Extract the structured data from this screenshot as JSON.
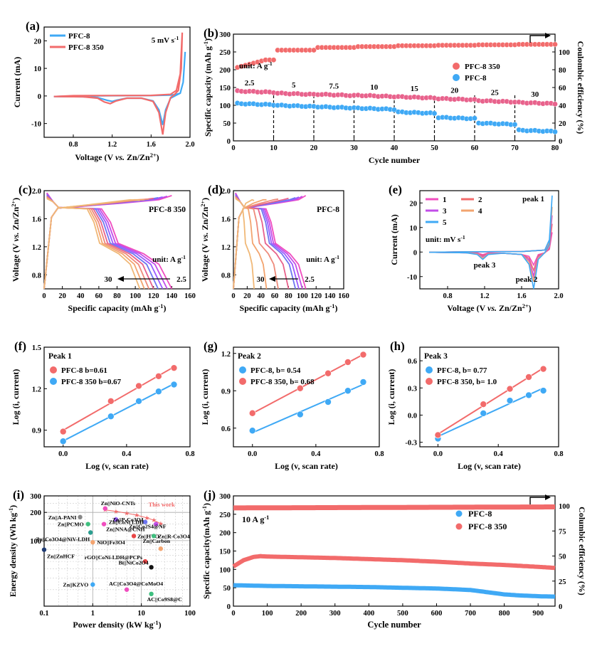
{
  "colors": {
    "blue": "#3fa9f5",
    "red": "#f26b6b",
    "rate_rainbow": [
      "#f04dbf",
      "#c24de8",
      "#9a5bff",
      "#6d76f0",
      "#e8628c",
      "#ee8a7a",
      "#f3a46f",
      "#f0b877"
    ]
  },
  "chart_data": [
    {
      "id": "a",
      "type": "line",
      "panel_label": "(a)",
      "xlabel": "Voltage (V vs. Zn/Zn2+)",
      "ylabel": "Current (mA)",
      "xlim": [
        0.5,
        2.0
      ],
      "ylim": [
        -15,
        25
      ],
      "xticks": [
        "0.8",
        "1.2",
        "1.6",
        "2.0"
      ],
      "xtick_values": [
        0.8,
        1.2,
        1.6,
        2.0
      ],
      "yticks": [
        "-10",
        "0",
        "10",
        "20"
      ],
      "ytick_values": [
        -10,
        0,
        10,
        20
      ],
      "annotation": "5 mV s-1",
      "series": [
        {
          "name": "PFC-8",
          "color": "#3fa9f5",
          "x": [
            0.6,
            0.9,
            1.05,
            1.15,
            1.2,
            1.25,
            1.35,
            1.5,
            1.62,
            1.68,
            1.72,
            1.75,
            1.8,
            1.86,
            1.9,
            1.93,
            1.95,
            1.93,
            1.9,
            1.85,
            1.8,
            1.6,
            1.2,
            0.8,
            0.6
          ],
          "y": [
            -0.2,
            -0.3,
            -0.6,
            -1.6,
            -2.0,
            -1.5,
            -0.8,
            -0.8,
            -1.8,
            -5,
            -10.5,
            -5,
            -0.8,
            0.3,
            1,
            5,
            16,
            5,
            1,
            0.5,
            0.3,
            0.15,
            0.1,
            0,
            -0.2
          ]
        },
        {
          "name": "PFC-8 350",
          "color": "#f26b6b",
          "x": [
            0.6,
            0.9,
            1.05,
            1.12,
            1.18,
            1.24,
            1.35,
            1.5,
            1.62,
            1.68,
            1.72,
            1.75,
            1.8,
            1.84,
            1.88,
            1.91,
            1.92,
            1.9,
            1.86,
            1.8,
            1.6,
            1.2,
            0.8,
            0.6
          ],
          "y": [
            -0.2,
            -0.3,
            -0.8,
            -2.2,
            -2.8,
            -1.8,
            -0.8,
            -0.8,
            -2,
            -6,
            -14,
            -6,
            -0.6,
            0.5,
            2,
            10,
            23,
            8,
            2,
            0.6,
            0.2,
            0.15,
            0.1,
            -0.2
          ]
        }
      ]
    },
    {
      "id": "b",
      "type": "scatter",
      "panel_label": "(b)",
      "xlabel": "Cycle number",
      "ylabel": "Specific capacity (mAh g-1)",
      "y2label": "Coulombic efficiency (%)",
      "xlim": [
        0,
        80
      ],
      "ylim": [
        0,
        300
      ],
      "y2lim": [
        0,
        120
      ],
      "xticks": [
        "0",
        "10",
        "20",
        "30",
        "40",
        "50",
        "60",
        "70",
        "80"
      ],
      "xtick_values": [
        0,
        10,
        20,
        30,
        40,
        50,
        60,
        70,
        80
      ],
      "yticks": [
        "0",
        "50",
        "100",
        "150",
        "200",
        "250",
        "300"
      ],
      "ytick_values": [
        0,
        50,
        100,
        150,
        200,
        250,
        300
      ],
      "y2ticks": [
        "0",
        "20",
        "40",
        "60",
        "80",
        "100"
      ],
      "y2tick_values": [
        0,
        20,
        40,
        60,
        80,
        100
      ],
      "unit_note": "unit: A g-1",
      "rates": [
        "2.5",
        "5",
        "7.5",
        "10",
        "15",
        "20",
        "25",
        "30"
      ],
      "rate_label_x": [
        4,
        15,
        25,
        35,
        45,
        55,
        65,
        75
      ],
      "dividers": [
        10,
        20,
        30,
        40,
        50,
        60,
        70
      ],
      "capacity_pfc8_350": [
        140,
        134,
        131,
        128,
        124,
        119,
        113,
        108
      ],
      "capacity_pfc8": [
        105,
        100,
        96,
        92,
        81,
        66,
        50,
        30
      ],
      "ce_pfc8_350": [
        91,
        102,
        105,
        106,
        107,
        107.5,
        108,
        108.5
      ],
      "legend": [
        "PFC-8 350",
        "PFC-8"
      ]
    },
    {
      "id": "c",
      "type": "line",
      "panel_label": "(c)",
      "xlabel": "Specific capacity (mAh g-1)",
      "ylabel": "Voltage (V vs. Zn/Zn2+)",
      "xlim": [
        0,
        160
      ],
      "ylim": [
        0.6,
        2.0
      ],
      "xticks": [
        "0",
        "20",
        "40",
        "60",
        "80",
        "100",
        "120",
        "140",
        "160"
      ],
      "xtick_values": [
        0,
        20,
        40,
        60,
        80,
        100,
        120,
        140,
        160
      ],
      "yticks": [
        "0.8",
        "1.2",
        "1.6",
        "2.0"
      ],
      "ytick_values": [
        0.8,
        1.2,
        1.6,
        2.0
      ],
      "title": "PFC-8 350",
      "unit_note": "unit: A g-1",
      "arrow_from": "30",
      "arrow_to": "2.5",
      "discharge_capacities": [
        140,
        135,
        130,
        125,
        120,
        115,
        110,
        105
      ]
    },
    {
      "id": "d",
      "type": "line",
      "panel_label": "(d)",
      "xlabel": "Specific capacity (mAh g-1)",
      "ylabel": "Voltage (V vs. Zn/Zn2+)",
      "xlim": [
        0,
        160
      ],
      "ylim": [
        0.6,
        2.0
      ],
      "xticks": [
        "0",
        "20",
        "40",
        "60",
        "80",
        "100",
        "120",
        "140",
        "160"
      ],
      "xtick_values": [
        0,
        20,
        40,
        60,
        80,
        100,
        120,
        140,
        160
      ],
      "yticks": [
        "0.8",
        "1.2",
        "1.6",
        "2.0"
      ],
      "ytick_values": [
        0.8,
        1.2,
        1.6,
        2.0
      ],
      "title": "PFC-8",
      "unit_note": "unit: A g-1",
      "arrow_from": "30",
      "arrow_to": "2.5",
      "discharge_capacities": [
        105,
        100,
        95,
        90,
        80,
        65,
        48,
        30
      ]
    },
    {
      "id": "e",
      "type": "line",
      "panel_label": "(e)",
      "xlabel": "Voltage (V vs. Zn/Zn2+)",
      "ylabel": "Current (mA)",
      "xlim": [
        0.5,
        2.0
      ],
      "ylim": [
        -15,
        25
      ],
      "xticks": [
        "0.8",
        "1.2",
        "1.6",
        "2.0"
      ],
      "xtick_values": [
        0.8,
        1.2,
        1.6,
        2.0
      ],
      "yticks": [
        "-10",
        "0",
        "10",
        "20"
      ],
      "ytick_values": [
        -10,
        0,
        10,
        20
      ],
      "legend": [
        "1",
        "2",
        "3",
        "4",
        "5"
      ],
      "legend_colors": [
        "#f04dbf",
        "#f26b6b",
        "#c24de8",
        "#f3a46f",
        "#3fa9f5"
      ],
      "unit_note": "unit: mV s-1",
      "peak_labels": [
        "peak 1",
        "peak 2",
        "peak 3"
      ],
      "peak_scale": [
        0.35,
        0.5,
        0.65,
        0.8,
        1.0
      ]
    },
    {
      "id": "f",
      "type": "scatter",
      "panel_label": "(f)",
      "xlabel": "Log (v, scan rate)",
      "ylabel": "Log (i, current)",
      "xlim": [
        -0.12,
        0.8
      ],
      "ylim": [
        0.78,
        1.5
      ],
      "xticks": [
        "0.0",
        "0.4",
        "0.8"
      ],
      "xtick_values": [
        0,
        0.4,
        0.8
      ],
      "yticks": [
        "0.9",
        "1.2",
        "1.5"
      ],
      "ytick_values": [
        0.9,
        1.2,
        1.5
      ],
      "title": "Peak 1",
      "x": [
        0,
        0.301,
        0.477,
        0.602,
        0.699
      ],
      "series": [
        {
          "name": "PFC-8 b=0.61",
          "color": "#f26b6b",
          "values": [
            0.89,
            1.11,
            1.22,
            1.29,
            1.35
          ]
        },
        {
          "name": "PFC-8 350 b=0.67",
          "color": "#3fa9f5",
          "values": [
            0.82,
            1.0,
            1.11,
            1.18,
            1.23
          ]
        }
      ]
    },
    {
      "id": "g",
      "type": "scatter",
      "panel_label": "(g)",
      "xlabel": "Log (v, scan rate)",
      "ylabel": "Log (i, current)",
      "xlim": [
        -0.12,
        0.8
      ],
      "ylim": [
        0.45,
        1.25
      ],
      "xticks": [
        "0.0",
        "0.4",
        "0.8"
      ],
      "xtick_values": [
        0,
        0.4,
        0.8
      ],
      "yticks": [
        "0.6",
        "0.9",
        "1.2"
      ],
      "ytick_values": [
        0.6,
        0.9,
        1.2
      ],
      "title": "Peak 2",
      "x": [
        0,
        0.301,
        0.477,
        0.602,
        0.699
      ],
      "series": [
        {
          "name": "PFC-8, b= 0.54",
          "color": "#3fa9f5",
          "values": [
            0.58,
            0.71,
            0.81,
            0.9,
            0.97
          ]
        },
        {
          "name": "PFC-8 350, b= 0.68",
          "color": "#f26b6b",
          "values": [
            0.72,
            0.92,
            1.04,
            1.13,
            1.19
          ]
        }
      ]
    },
    {
      "id": "h",
      "type": "scatter",
      "panel_label": "(h)",
      "xlabel": "Log (v, scan rate)",
      "ylabel": "Log (i, current)",
      "xlim": [
        -0.12,
        0.8
      ],
      "ylim": [
        -0.35,
        0.75
      ],
      "xticks": [
        "0.0",
        "0.4",
        "0.8"
      ],
      "xtick_values": [
        0,
        0.4,
        0.8
      ],
      "yticks": [
        "-0.3",
        "0.0",
        "0.3",
        "0.6"
      ],
      "ytick_values": [
        -0.3,
        0,
        0.3,
        0.6
      ],
      "title": "Peak 3",
      "x": [
        0,
        0.301,
        0.477,
        0.602,
        0.699
      ],
      "series": [
        {
          "name": "PFC-8, b= 0.77",
          "color": "#3fa9f5",
          "values": [
            -0.26,
            0.02,
            0.16,
            0.22,
            0.27
          ]
        },
        {
          "name": "PFC-8 350, b= 1.0",
          "color": "#f26b6b",
          "values": [
            -0.22,
            0.12,
            0.29,
            0.42,
            0.51
          ]
        }
      ]
    },
    {
      "id": "i",
      "type": "scatter",
      "panel_label": "(i)",
      "xlabel": "Power density (kW kg-1)",
      "ylabel": "Energy density (Wh kg-1)",
      "xscale": "log",
      "yscale": "log",
      "xlim": [
        0.1,
        100
      ],
      "ylim": [
        20,
        300
      ],
      "xticks": [
        "0.1",
        "1",
        "10",
        "100"
      ],
      "xtick_values": [
        0.1,
        1,
        10,
        100
      ],
      "yticks": [
        "100",
        "200",
        "300"
      ],
      "ytick_values": [
        100,
        200,
        300
      ],
      "this_work_label": "This work",
      "this_work": {
        "x": [
          1.8,
          3.0,
          5.0,
          8.0,
          13.0,
          18.0,
          25.0
        ],
        "y": [
          213,
          205,
          196,
          187,
          175,
          165,
          152
        ]
      },
      "points": [
        {
          "label": "Zn||NiO-CNTs",
          "x": 1.8,
          "y": 220,
          "color": "#f04dbf"
        },
        {
          "label": "Zn||A-PANI",
          "x": 0.55,
          "y": 178,
          "color": "#888888"
        },
        {
          "label": "Zn||P-Co3O4",
          "x": 3.0,
          "y": 168,
          "color": "#9a5bff"
        },
        {
          "label": "Zn||CoNi LDH",
          "x": 12.0,
          "y": 158,
          "color": "#6d76f0"
        },
        {
          "label": "Zn||PCMO",
          "x": 0.8,
          "y": 150,
          "color": "#3fbf7f"
        },
        {
          "label": "Zn||NNA@CNH",
          "x": 1.7,
          "y": 150,
          "color": "#f04dbf"
        },
        {
          "label": "Zn||Co2S4@NF",
          "x": 20.0,
          "y": 150,
          "color": "#c24de8"
        },
        {
          "label": "Zn||Co3O4@NiV-LDH",
          "x": 0.9,
          "y": 122,
          "color": "#2a9d8f"
        },
        {
          "label": "Zn||HVO",
          "x": 7.0,
          "y": 112,
          "color": "#e84545"
        },
        {
          "label": "Zn||R-Co3O4",
          "x": 18.0,
          "y": 112,
          "color": "#3fbf7f"
        },
        {
          "label": "NiO||Fe3O4",
          "x": 1.0,
          "y": 96,
          "color": "#f3a46f"
        },
        {
          "label": "Zn||Carbon",
          "x": 25.0,
          "y": 82,
          "color": "#f3a46f"
        },
        {
          "label": "Zn||ZnHCF",
          "x": 0.1,
          "y": 80,
          "color": "#1f3b73"
        },
        {
          "label": "rGO||CoNi-LDH@PCPs",
          "x": 12.0,
          "y": 60,
          "color": "#e84545"
        },
        {
          "label": "Bi||NiCo2O4",
          "x": 16.0,
          "y": 52,
          "color": "#111111"
        },
        {
          "label": "Zn||KZVO",
          "x": 1.0,
          "y": 34,
          "color": "#3fa9f5"
        },
        {
          "label": "AC||Co3O4@CoMoO4",
          "x": 5.0,
          "y": 30,
          "color": "#f04dbf"
        },
        {
          "label": "AC||Co9S8@C",
          "x": 16.0,
          "y": 27,
          "color": "#3fbf7f"
        }
      ]
    },
    {
      "id": "j",
      "type": "scatter",
      "panel_label": "(j)",
      "xlabel": "Cycle number",
      "ylabel": "Specific capacity(mAh g-1)",
      "y2label": "Columbic efficiency (%)",
      "xlim": [
        0,
        950
      ],
      "ylim": [
        0,
        300
      ],
      "y2lim": [
        0,
        110
      ],
      "xticks": [
        "0",
        "100",
        "200",
        "300",
        "400",
        "500",
        "600",
        "700",
        "800",
        "900"
      ],
      "xtick_values": [
        0,
        100,
        200,
        300,
        400,
        500,
        600,
        700,
        800,
        900
      ],
      "yticks": [
        "0",
        "50",
        "100",
        "150",
        "200",
        "250",
        "300"
      ],
      "ytick_values": [
        0,
        50,
        100,
        150,
        200,
        250,
        300
      ],
      "y2ticks": [
        "0",
        "25",
        "50",
        "75",
        "100"
      ],
      "y2tick_values": [
        0,
        25,
        50,
        75,
        100
      ],
      "annotation": "10 A g-1",
      "legend": [
        "PFC-8",
        "PFC-8 350"
      ],
      "pfc8": {
        "x": [
          0,
          100,
          200,
          300,
          400,
          500,
          600,
          700,
          750,
          800,
          850,
          900,
          950
        ],
        "y": [
          57,
          55,
          54,
          53,
          52,
          50,
          48,
          44,
          38,
          32,
          29,
          27,
          26
        ]
      },
      "pfc8_350": {
        "x": [
          0,
          30,
          60,
          80,
          100,
          200,
          300,
          400,
          500,
          600,
          700,
          800,
          900,
          950
        ],
        "y": [
          108,
          125,
          134,
          136,
          135,
          133,
          131,
          128,
          125,
          121,
          116,
          112,
          107,
          104
        ]
      },
      "ce": {
        "x": [
          0,
          950
        ],
        "y": [
          98,
          99
        ]
      }
    }
  ]
}
